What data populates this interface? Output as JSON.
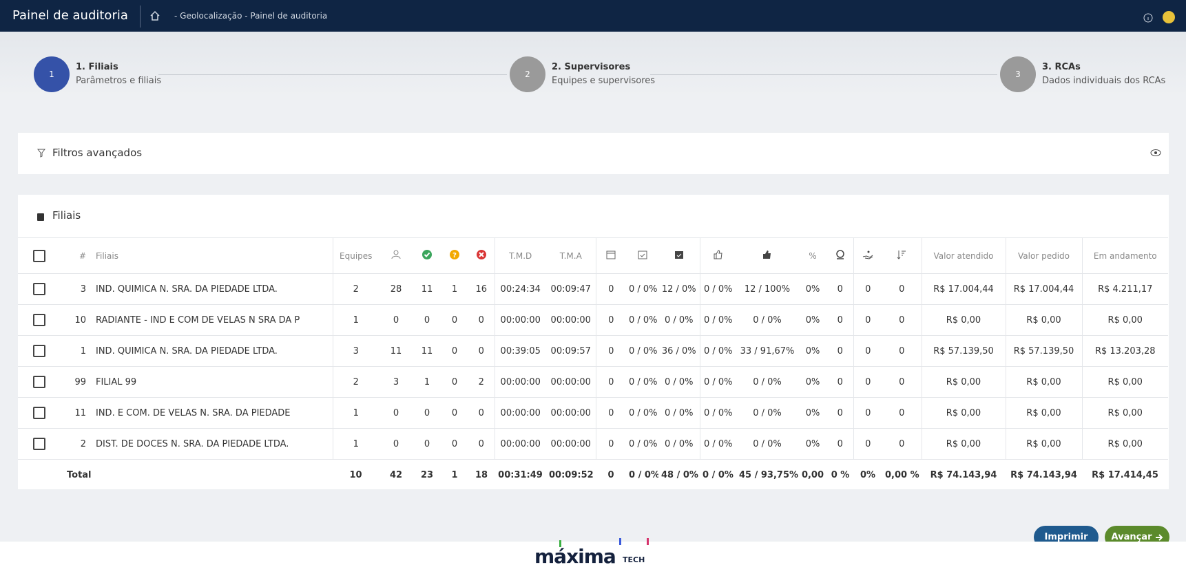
{
  "header": {
    "title": "Painel de auditoria",
    "breadcrumb": "- Geolocalização - Painel de auditoria"
  },
  "steps": [
    {
      "number": "1",
      "title": "1. Filiais",
      "subtitle": "Parâmetros e filiais"
    },
    {
      "number": "2",
      "title": "2. Supervisores",
      "subtitle": "Equipes e supervisores"
    },
    {
      "number": "3",
      "title": "3. RCAs",
      "subtitle": "Dados individuais dos RCAs"
    }
  ],
  "filters": {
    "title": "Filtros avançados"
  },
  "table": {
    "title": "Filiais",
    "columns": {
      "num": "#",
      "name": "Filiais",
      "equipes": "Equipes",
      "tmd": "T.M.D",
      "tma": "T.M.A",
      "pct": "%",
      "valor_atendido": "Valor atendido",
      "valor_pedido": "Valor pedido",
      "em_andamento": "Em andamento"
    },
    "rows": [
      [
        "3",
        "IND. QUIMICA N. SRA. DA PIEDADE LTDA.",
        "2",
        "28",
        "11",
        "1",
        "16",
        "00:24:34",
        "00:09:47",
        "0",
        "0 / 0%",
        "12 / 0%",
        "0 / 0%",
        "12 / 100%",
        "0%",
        "0",
        "0",
        "0",
        "R$ 17.004,44",
        "R$ 17.004,44",
        "R$ 4.211,17"
      ],
      [
        "10",
        "RADIANTE - IND E COM DE VELAS N SRA DA P",
        "1",
        "0",
        "0",
        "0",
        "0",
        "00:00:00",
        "00:00:00",
        "0",
        "0 / 0%",
        "0 / 0%",
        "0 / 0%",
        "0 / 0%",
        "0%",
        "0",
        "0",
        "0",
        "R$ 0,00",
        "R$ 0,00",
        "R$ 0,00"
      ],
      [
        "1",
        "IND. QUIMICA N. SRA. DA PIEDADE LTDA.",
        "3",
        "11",
        "11",
        "0",
        "0",
        "00:39:05",
        "00:09:57",
        "0",
        "0 / 0%",
        "36 / 0%",
        "0 / 0%",
        "33 / 91,67%",
        "0%",
        "0",
        "0",
        "0",
        "R$ 57.139,50",
        "R$ 57.139,50",
        "R$ 13.203,28"
      ],
      [
        "99",
        "FILIAL 99",
        "2",
        "3",
        "1",
        "0",
        "2",
        "00:00:00",
        "00:00:00",
        "0",
        "0 / 0%",
        "0 / 0%",
        "0 / 0%",
        "0 / 0%",
        "0%",
        "0",
        "0",
        "0",
        "R$ 0,00",
        "R$ 0,00",
        "R$ 0,00"
      ],
      [
        "11",
        "IND. E COM. DE VELAS N. SRA. DA PIEDADE",
        "1",
        "0",
        "0",
        "0",
        "0",
        "00:00:00",
        "00:00:00",
        "0",
        "0 / 0%",
        "0 / 0%",
        "0 / 0%",
        "0 / 0%",
        "0%",
        "0",
        "0",
        "0",
        "R$ 0,00",
        "R$ 0,00",
        "R$ 0,00"
      ],
      [
        "2",
        "DIST. DE DOCES N. SRA. DA PIEDADE LTDA.",
        "1",
        "0",
        "0",
        "0",
        "0",
        "00:00:00",
        "00:00:00",
        "0",
        "0 / 0%",
        "0 / 0%",
        "0 / 0%",
        "0 / 0%",
        "0%",
        "0",
        "0",
        "0",
        "R$ 0,00",
        "R$ 0,00",
        "R$ 0,00"
      ]
    ],
    "total": {
      "label": "Total",
      "values": [
        "10",
        "42",
        "23",
        "1",
        "18",
        "00:31:49",
        "00:09:52",
        "0",
        "0 / 0%",
        "48 / 0%",
        "0 / 0%",
        "45 / 93,75%",
        "0,00",
        "0 %",
        "0%",
        "0,00 %",
        "R$ 74.143,94",
        "R$ 74.143,94",
        "R$ 17.414,45"
      ]
    }
  },
  "buttons": {
    "print": "Imprimir",
    "next": "Avançar"
  },
  "footer": {
    "logo": "máxima",
    "logo_sub": "TECH"
  }
}
